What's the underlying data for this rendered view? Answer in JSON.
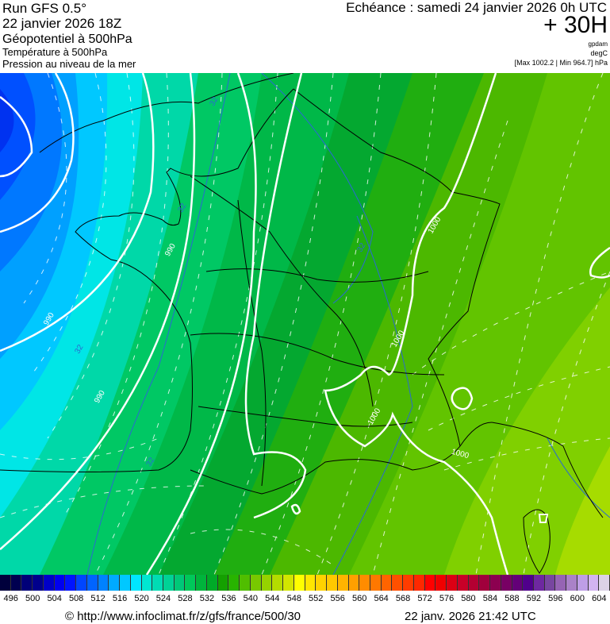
{
  "header": {
    "run": "Run GFS 0.5°",
    "run_date": "22 janvier 2026 18Z",
    "param1": "Géopotentiel à 500hPa",
    "param2": "Température à 500hPa",
    "param3": "Pression au niveau de la mer",
    "echeance": "Echéance : samedi 24 janvier 2026 0h UTC",
    "offset": "+ 30H",
    "unit1": "gpdam",
    "unit2": "degC",
    "pressure_range": "[Max 1002.2 | Min 964.7] hPa"
  },
  "map": {
    "contour_labels": [
      "990",
      "990",
      "990",
      "1000",
      "1000",
      "1000",
      "1000"
    ],
    "temp_labels": [
      "32",
      "32",
      "32",
      "32",
      "32"
    ],
    "colors": {
      "isobar": "#ffffff",
      "isotherm": "#2a6ad0",
      "border": "#000000"
    }
  },
  "colorbar": {
    "labels": [
      "496",
      "500",
      "504",
      "508",
      "512",
      "516",
      "520",
      "524",
      "528",
      "532",
      "536",
      "540",
      "544",
      "548",
      "552",
      "556",
      "560",
      "564",
      "568",
      "572",
      "576",
      "580",
      "584",
      "588",
      "592",
      "596",
      "600",
      "604"
    ],
    "colors": [
      "#00003c",
      "#000050",
      "#000078",
      "#00008c",
      "#0000c8",
      "#0000f0",
      "#0014ff",
      "#0046ff",
      "#0064ff",
      "#0082ff",
      "#00aaff",
      "#00c8ff",
      "#00e6ff",
      "#00e6d2",
      "#00dcb4",
      "#00d296",
      "#00c878",
      "#00c85a",
      "#00b43c",
      "#00aa28",
      "#14a000",
      "#28b400",
      "#50be00",
      "#78c800",
      "#96d200",
      "#b4dc00",
      "#d2e600",
      "#ffff00",
      "#ffe600",
      "#ffd200",
      "#ffc800",
      "#ffb400",
      "#ffa000",
      "#ff8c00",
      "#ff7800",
      "#ff6400",
      "#ff5000",
      "#ff3c00",
      "#ff2800",
      "#ff0000",
      "#f00000",
      "#dc0014",
      "#c80028",
      "#b40032",
      "#a0003c",
      "#8c0050",
      "#780064",
      "#640078",
      "#50008c",
      "#6e28a0",
      "#7846a0",
      "#9664b4",
      "#aa82c8",
      "#be9ee6",
      "#d2b4f0",
      "#dcd2e6"
    ]
  },
  "footer": {
    "source": "© http://www.infoclimat.fr/z/gfs/france/500/30",
    "generated": "22 janv. 2026 21:42 UTC"
  }
}
